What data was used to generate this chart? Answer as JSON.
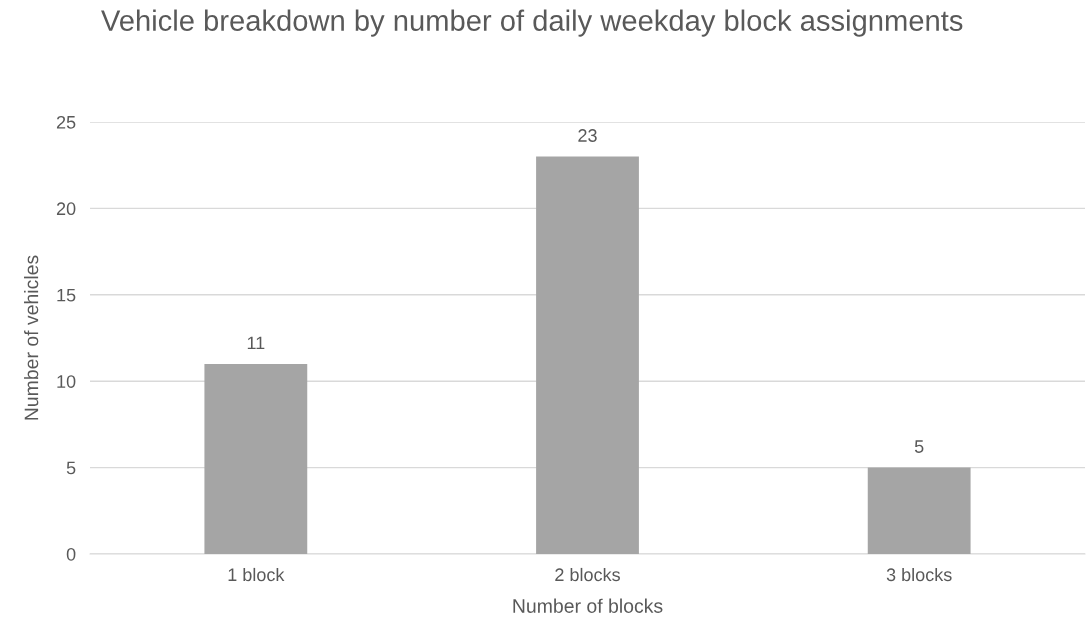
{
  "chart_data": {
    "type": "bar",
    "title": "Vehicle breakdown by number of daily weekday block assignments",
    "xlabel": "Number of blocks",
    "ylabel": "Number of vehicles",
    "categories": [
      "1 block",
      "2 blocks",
      "3 blocks"
    ],
    "values": [
      11,
      23,
      5
    ],
    "color": "#a5a5a5",
    "ylim": [
      0,
      25
    ],
    "yticks": [
      0,
      5,
      10,
      15,
      20,
      25
    ],
    "grid": "y",
    "data_labels": true
  }
}
